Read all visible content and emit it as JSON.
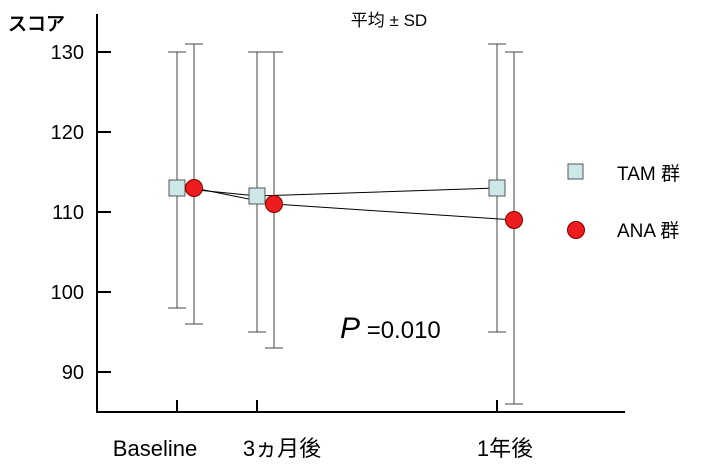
{
  "chart_data": {
    "type": "line",
    "title": "平均 ± SD",
    "ylabel": "スコア",
    "xlabel": "",
    "categories": [
      "Baseline",
      "3ヵ月後",
      "1年後"
    ],
    "yticks": [
      90,
      100,
      110,
      120,
      130
    ],
    "ylim": [
      85.5,
      132
    ],
    "grid": false,
    "legend_position": "right",
    "series": [
      {
        "name": "TAM 群",
        "marker": "square",
        "color": "#cce8e8",
        "values": [
          113,
          112,
          113
        ],
        "sd_low": [
          98,
          95,
          95
        ],
        "sd_high": [
          130,
          130,
          131
        ]
      },
      {
        "name": "ANA 群",
        "marker": "circle",
        "color": "#ee1c1c",
        "values": [
          113,
          111,
          109
        ],
        "sd_low": [
          96,
          93,
          86
        ],
        "sd_high": [
          131,
          130,
          130
        ]
      }
    ],
    "annotation": {
      "p_label": "P",
      "p_value": "=0.010"
    }
  }
}
